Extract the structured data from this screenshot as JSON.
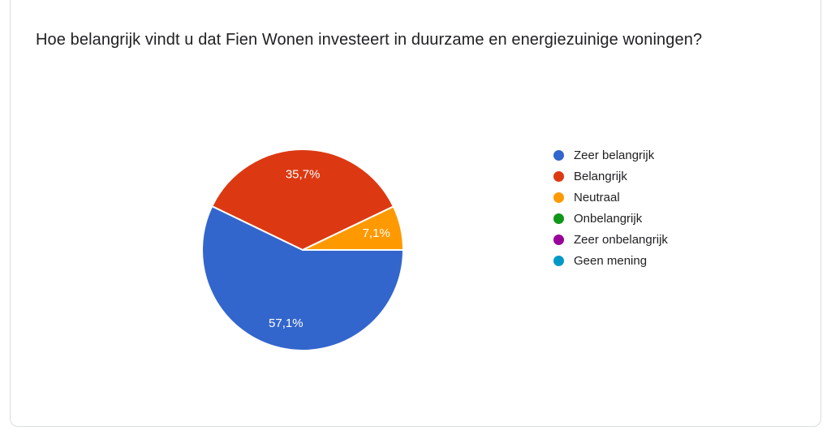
{
  "card": {
    "title": "Hoe belangrijk vindt u dat Fien Wonen investeert in duurzame en energiezuinige woningen?"
  },
  "chart_data": {
    "type": "pie",
    "title": "Hoe belangrijk vindt u dat Fien Wonen investeert in duurzame en energiezuinige woningen?",
    "categories": [
      "Zeer belangrijk",
      "Belangrijk",
      "Neutraal",
      "Onbelangrijk",
      "Zeer onbelangrijk",
      "Geen mening"
    ],
    "values": [
      57.1,
      35.7,
      7.1,
      0,
      0,
      0
    ],
    "slice_labels": [
      "57,1%",
      "35,7%",
      "7,1%",
      "",
      "",
      ""
    ],
    "colors": [
      "#3366CC",
      "#DC3912",
      "#FF9900",
      "#109618",
      "#990099",
      "#0099C6"
    ],
    "start_angle_deg": 0,
    "direction": "clockwise",
    "legend_position": "right",
    "slice_label_color": "#ffffff",
    "background": "#ffffff"
  },
  "styles": {
    "card_border_color": "#dadce0",
    "text_color": "#202124"
  }
}
